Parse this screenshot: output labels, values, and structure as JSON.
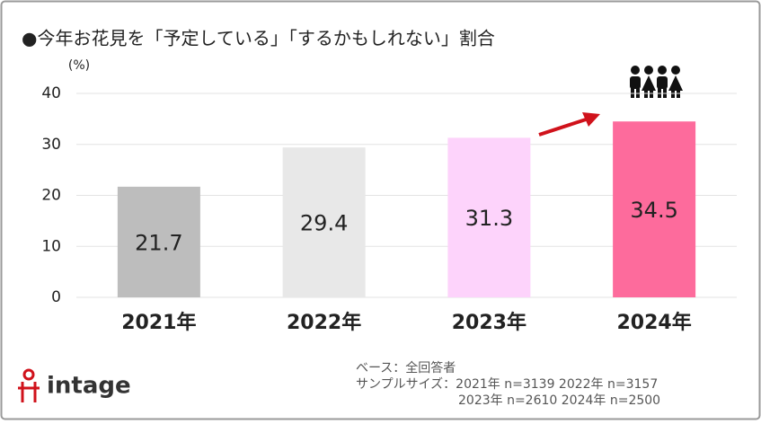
{
  "chart_data": {
    "type": "bar",
    "title": "●今年お花見を「予定している」「するかもしれない」割合",
    "y_label": "(%)",
    "categories": [
      "2021年",
      "2022年",
      "2023年",
      "2024年"
    ],
    "values": [
      21.7,
      29.4,
      31.3,
      34.5
    ],
    "colors": [
      "#bdbdbd",
      "#e8e8e8",
      "#fdd3fb",
      "#fd6b9c"
    ],
    "ylim": [
      0,
      40
    ],
    "yticks": [
      0,
      10,
      20,
      30,
      40
    ],
    "grid": true,
    "notes": [
      "ベース：全回答者",
      "サンプルサイズ：2021年 n=3139  2022年 n=3157",
      "2023年 n=2610  2024年 n=2500"
    ]
  },
  "logo": "intage"
}
